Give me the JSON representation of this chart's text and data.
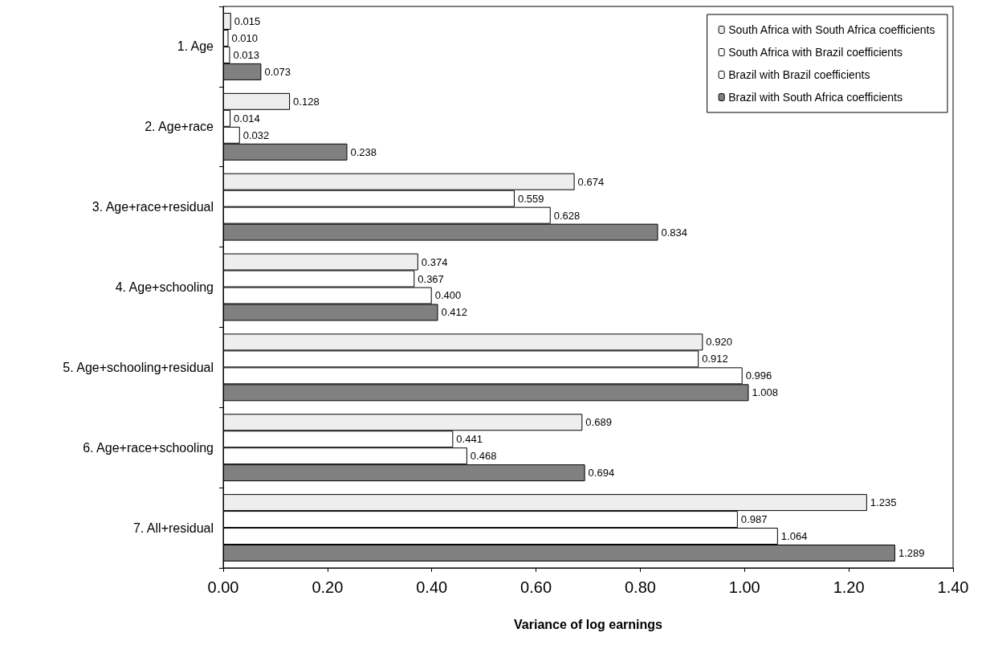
{
  "chart_data": {
    "type": "bar",
    "orientation": "horizontal",
    "xlabel": "Variance of log earnings",
    "categories": [
      "1. Age",
      "2. Age+race",
      "3. Age+race+residual",
      "4. Age+schooling",
      "5. Age+schooling+residual",
      "6. Age+race+schooling",
      "7. All+residual"
    ],
    "series": [
      {
        "name": "South Africa with South Africa coefficients",
        "color": "#eeeeee",
        "values": [
          0.015,
          0.128,
          0.674,
          0.374,
          0.92,
          0.689,
          1.235
        ],
        "value_labels": [
          "0.015",
          "0.128",
          "0.674",
          "0.374",
          "0.920",
          "0.689",
          "1.235"
        ]
      },
      {
        "name": "South Africa with Brazil coefficients",
        "color": "#ffffff",
        "values": [
          0.01,
          0.014,
          0.559,
          0.367,
          0.912,
          0.441,
          0.987
        ],
        "value_labels": [
          "0.010",
          "0.014",
          "0.559",
          "0.367",
          "0.912",
          "0.441",
          "0.987"
        ]
      },
      {
        "name": "Brazil with Brazil coefficients",
        "color": "#ffffff",
        "values": [
          0.013,
          0.032,
          0.628,
          0.4,
          0.996,
          0.468,
          1.064
        ],
        "value_labels": [
          "0.013",
          "0.032",
          "0.628",
          "0.400",
          "0.996",
          "0.468",
          "1.064"
        ]
      },
      {
        "name": "Brazil with South Africa coefficients",
        "color": "#808080",
        "values": [
          0.073,
          0.238,
          0.834,
          0.412,
          1.008,
          0.694,
          1.289
        ],
        "value_labels": [
          "0.073",
          "0.238",
          "0.834",
          "0.412",
          "1.008",
          "0.694",
          "1.289"
        ]
      }
    ],
    "xlim": [
      0,
      1.4
    ],
    "xticks": [
      {
        "value": 0,
        "label": "0.00"
      },
      {
        "value": 0.2,
        "label": "0.20"
      },
      {
        "value": 0.4,
        "label": "0.40"
      },
      {
        "value": 0.6,
        "label": "0.60"
      },
      {
        "value": 0.8,
        "label": "0.80"
      },
      {
        "value": 1.0,
        "label": "1.00"
      },
      {
        "value": 1.2,
        "label": "1.20"
      },
      {
        "value": 1.4,
        "label": "1.40"
      }
    ],
    "grid": false,
    "legend": "top right"
  }
}
